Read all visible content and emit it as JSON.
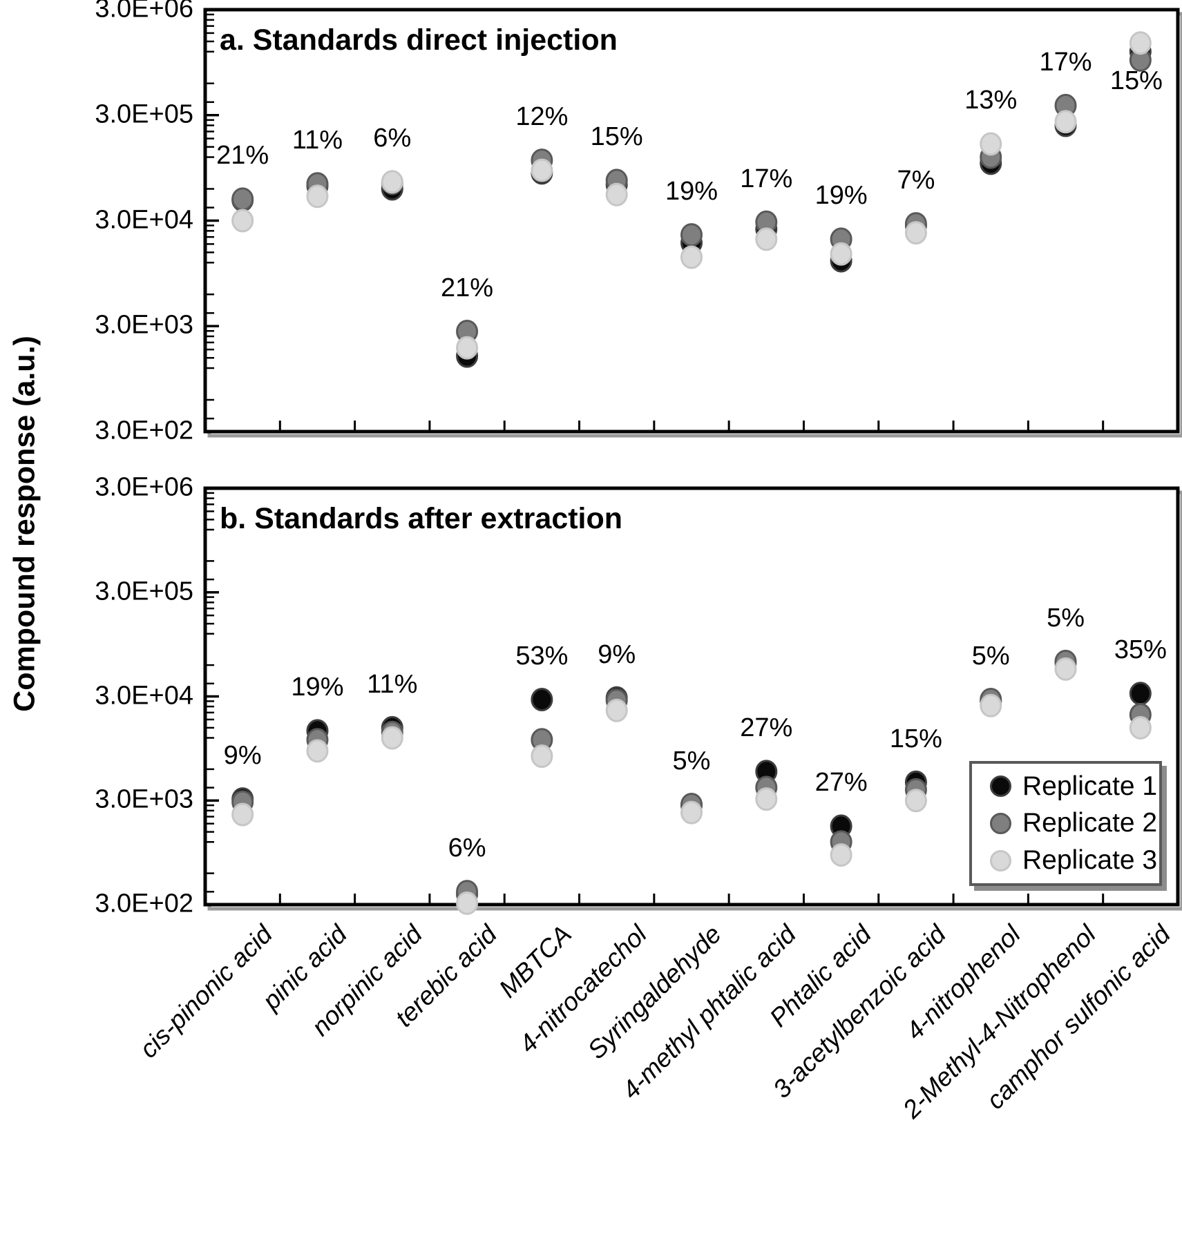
{
  "chart_data": [
    {
      "panel": "a",
      "type": "scatter",
      "title": "a. Standards direct injection",
      "ylabel": "Compound response (a.u.)",
      "xlabel": "",
      "yscale": "log",
      "ylim": [
        300,
        3000000
      ],
      "ytick_labels": [
        "3.0E+06",
        "3.0E+05",
        "3.0E+04",
        "3.0E+03",
        "3.0E+02"
      ],
      "grid": false,
      "categories": [
        "cis-pinonic acid",
        "pinic acid",
        "norpinic acid",
        "terebic acid",
        "MBTCA",
        "4-nitrocatechol",
        "Syringaldehyde",
        "4-methyl phtalic acid",
        "Phtalic acid",
        "3-acetylbenzoic acid",
        "4-nitrophenol",
        "2-Methyl-4-Nitrophenol",
        "camphor sulfonic acid"
      ],
      "series": [
        {
          "name": "Replicate 1",
          "fill": "#0a0a0a",
          "edge": "#3d3d3d",
          "values": [
            47000,
            64000,
            60000,
            1560,
            85000,
            66000,
            18500,
            25000,
            12500,
            27000,
            105000,
            240000,
            1200000
          ]
        },
        {
          "name": "Replicate 2",
          "fill": "#7f7f7f",
          "edge": "#595959",
          "values": [
            48000,
            67000,
            68000,
            2670,
            112000,
            72000,
            22000,
            29000,
            20000,
            28000,
            120000,
            370000,
            1000000
          ]
        },
        {
          "name": "Replicate 3",
          "fill": "#d9d9d9",
          "edge": "#c6c6c6",
          "values": [
            30000,
            51000,
            70000,
            1870,
            90000,
            53000,
            13500,
            20000,
            14500,
            23000,
            160000,
            260000,
            1450000
          ]
        }
      ],
      "point_labels": [
        {
          "text": "21%"
        },
        {
          "text": "11%"
        },
        {
          "text": "6%"
        },
        {
          "text": "21%"
        },
        {
          "text": "12%"
        },
        {
          "text": "15%"
        },
        {
          "text": "19%"
        },
        {
          "text": "17%"
        },
        {
          "text": "19%"
        },
        {
          "text": "7%"
        },
        {
          "text": "13%"
        },
        {
          "text": "17%"
        },
        {
          "text": "15%",
          "dx": -6,
          "dy": 118
        }
      ],
      "legend": null
    },
    {
      "panel": "b",
      "type": "scatter",
      "title": "b. Standards after extraction",
      "ylabel": "Compound response (a.u.)",
      "xlabel": "",
      "yscale": "log",
      "ylim": [
        300,
        3000000
      ],
      "ytick_labels": [
        "3.0E+06",
        "3.0E+05",
        "3.0E+04",
        "3.0E+03",
        "3.0E+02"
      ],
      "grid": false,
      "categories": [
        "cis-pinonic acid",
        "pinic acid",
        "norpinic acid",
        "terebic acid",
        "MBTCA",
        "4-nitrocatechol",
        "Syringaldehyde",
        "4-methyl phtalic acid",
        "Phtalic acid",
        "3-acetylbenzoic acid",
        "4-nitrophenol",
        "2-Methyl-4-Nitrophenol",
        "camphor sulfonic acid"
      ],
      "series": [
        {
          "name": "Replicate 1",
          "fill": "#0a0a0a",
          "edge": "#3d3d3d",
          "values": [
            3100,
            14000,
            15000,
            380,
            28000,
            29000,
            2700,
            5700,
            1700,
            4500,
            27000,
            63000,
            32000
          ]
        },
        {
          "name": "Replicate 2",
          "fill": "#7f7f7f",
          "edge": "#595959",
          "values": [
            2900,
            11500,
            13500,
            400,
            11500,
            27500,
            2750,
            4000,
            1200,
            3800,
            28000,
            65000,
            20000
          ]
        },
        {
          "name": "Replicate 3",
          "fill": "#d9d9d9",
          "edge": "#c6c6c6",
          "values": [
            2200,
            9000,
            12000,
            310,
            8000,
            22000,
            2300,
            3100,
            900,
            3000,
            24500,
            55000,
            15000
          ]
        }
      ],
      "point_labels": [
        {
          "text": "9%"
        },
        {
          "text": "19%"
        },
        {
          "text": "11%"
        },
        {
          "text": "6%"
        },
        {
          "text": "53%"
        },
        {
          "text": "9%"
        },
        {
          "text": "5%"
        },
        {
          "text": "27%"
        },
        {
          "text": "27%"
        },
        {
          "text": "15%"
        },
        {
          "text": "5%"
        },
        {
          "text": "5%"
        },
        {
          "text": "35%"
        }
      ],
      "legend": {
        "position": "inside lower right"
      }
    }
  ]
}
